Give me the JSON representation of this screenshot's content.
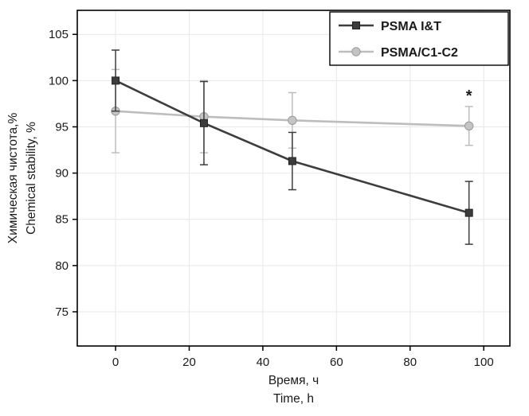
{
  "chart_data": {
    "type": "line",
    "title": "",
    "xlabel_lines": [
      "Время, ч",
      "Time, h"
    ],
    "ylabel_lines": [
      "Химическая чистота,%",
      "Chemical stability, %"
    ],
    "xlim": [
      -10.4,
      107.1
    ],
    "ylim": [
      71.3,
      107.6
    ],
    "xticks": [
      0,
      20,
      40,
      60,
      80,
      100
    ],
    "yticks": [
      75,
      80,
      85,
      90,
      95,
      100,
      105
    ],
    "grid": true,
    "legend_position": "top-right",
    "frame_color": "#000000",
    "grid_color": "#e7e7e7",
    "series": [
      {
        "name": "PSMA I&T",
        "marker": "square",
        "color": "#3d3d3d",
        "marker_fill": "#3d3d3d",
        "marker_stroke": "#222222",
        "x": [
          0,
          24,
          48,
          96
        ],
        "y": [
          100.0,
          95.4,
          91.3,
          85.7
        ],
        "yerr": [
          3.3,
          4.5,
          3.1,
          3.4
        ]
      },
      {
        "name": "PSMA/C1-C2",
        "marker": "circle",
        "color": "#bdbdbd",
        "marker_fill": "#c4c4c4",
        "marker_stroke": "#9a9a9a",
        "x": [
          0,
          24,
          48,
          96
        ],
        "y": [
          96.7,
          96.1,
          95.7,
          95.1
        ],
        "yerr": [
          4.5,
          3.9,
          3.0,
          2.1
        ]
      }
    ],
    "annotations": [
      {
        "text": "*",
        "x": 96,
        "y": 97.8,
        "color": "#2b2b2b"
      }
    ]
  }
}
